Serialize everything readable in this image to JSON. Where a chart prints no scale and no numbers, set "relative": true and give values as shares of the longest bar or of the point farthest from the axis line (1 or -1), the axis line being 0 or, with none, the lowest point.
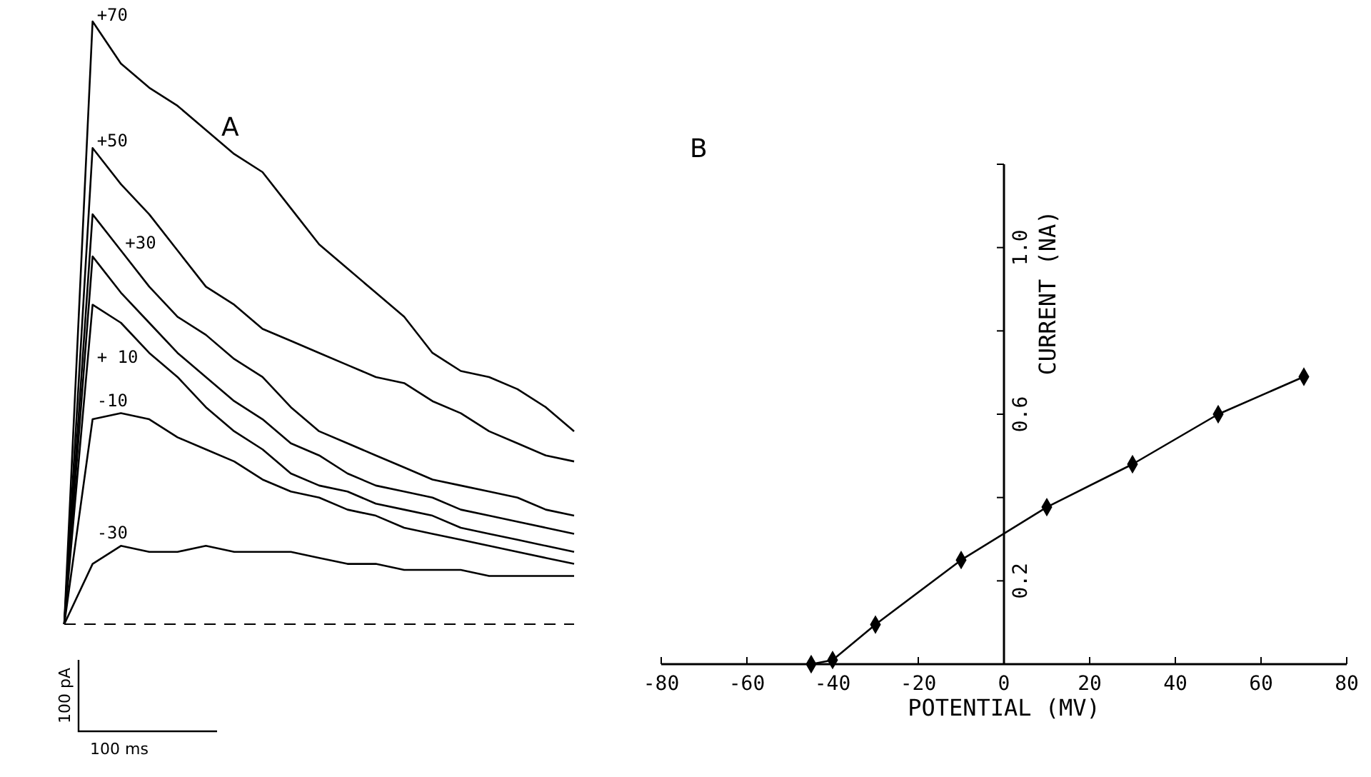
{
  "chart_data": [
    {
      "type": "line",
      "title": "A",
      "relative": true,
      "categories": [
        null,
        null,
        null,
        null,
        null,
        null,
        null,
        null,
        null,
        null,
        null,
        null,
        null,
        null,
        null,
        null,
        null,
        null,
        null
      ],
      "marker": "none",
      "line_style": "solid",
      "annotations": [
        "100 pA",
        "100 ms"
      ],
      "series": [
        {
          "name": "+70",
          "color": "#000000",
          "values": [
            0,
            1.0,
            0.93,
            0.89,
            0.86,
            0.82,
            0.78,
            0.75,
            0.69,
            0.63,
            0.59,
            0.55,
            0.51,
            0.45,
            0.42,
            0.41,
            0.39,
            0.36,
            0.32
          ]
        },
        {
          "name": "+50",
          "color": "#000000",
          "values": [
            0,
            0.79,
            0.73,
            0.68,
            0.62,
            0.56,
            0.53,
            0.49,
            0.47,
            0.45,
            0.43,
            0.41,
            0.4,
            0.37,
            0.35,
            0.32,
            0.3,
            0.28,
            0.27
          ]
        },
        {
          "name": "+30",
          "color": "#000000",
          "values": [
            0,
            0.68,
            0.62,
            0.56,
            0.51,
            0.48,
            0.44,
            0.41,
            0.36,
            0.32,
            0.3,
            0.28,
            0.26,
            0.24,
            0.23,
            0.22,
            0.21,
            0.19,
            0.18
          ]
        },
        {
          "color": "#000000",
          "values": [
            0,
            0.61,
            0.55,
            0.5,
            0.45,
            0.41,
            0.37,
            0.34,
            0.3,
            0.28,
            0.25,
            0.23,
            0.22,
            0.21,
            0.19,
            0.18,
            0.17,
            0.16,
            0.15
          ]
        },
        {
          "name": "+ 10",
          "color": "#000000",
          "values": [
            0,
            0.53,
            0.5,
            0.45,
            0.41,
            0.36,
            0.32,
            0.29,
            0.25,
            0.23,
            0.22,
            0.2,
            0.19,
            0.18,
            0.16,
            0.15,
            0.14,
            0.13,
            0.12
          ]
        },
        {
          "name": "-10",
          "color": "#000000",
          "values": [
            0,
            0.34,
            0.35,
            0.34,
            0.31,
            0.29,
            0.27,
            0.24,
            0.22,
            0.21,
            0.19,
            0.18,
            0.16,
            0.15,
            0.14,
            0.13,
            0.12,
            0.11,
            0.1
          ]
        },
        {
          "name": "-30",
          "color": "#000000",
          "values": [
            0,
            0.1,
            0.13,
            0.12,
            0.12,
            0.13,
            0.12,
            0.12,
            0.12,
            0.11,
            0.1,
            0.1,
            0.09,
            0.09,
            0.09,
            0.08,
            0.08,
            0.08,
            0.08
          ]
        }
      ]
    },
    {
      "type": "line",
      "title": "B",
      "xlabel": "POTENTIAL (MV)",
      "ylabel": "CURRENT (NA)",
      "x": [
        -45,
        -40,
        -30,
        -10,
        10,
        30,
        50,
        70
      ],
      "xlim": [
        -80,
        80
      ],
      "ylim": [
        0,
        1.2
      ],
      "xticks": [
        -80,
        -60,
        -40,
        -20,
        0,
        20,
        40,
        60,
        80
      ],
      "yticks": [
        {
          "value": 0,
          "label": null
        },
        0.2,
        {
          "value": 0.4,
          "label": null
        },
        0.6,
        {
          "value": 0.8,
          "label": null
        },
        {
          "value": 1.0,
          "label": "1.0"
        },
        {
          "value": 1.2,
          "label": null
        }
      ],
      "marker": "diamond",
      "line_style": "solid",
      "series": [
        {
          "color": "#000000",
          "values": [
            0,
            0.01,
            0.095,
            0.25,
            0.377,
            0.48,
            0.6,
            0.69
          ]
        }
      ]
    }
  ]
}
